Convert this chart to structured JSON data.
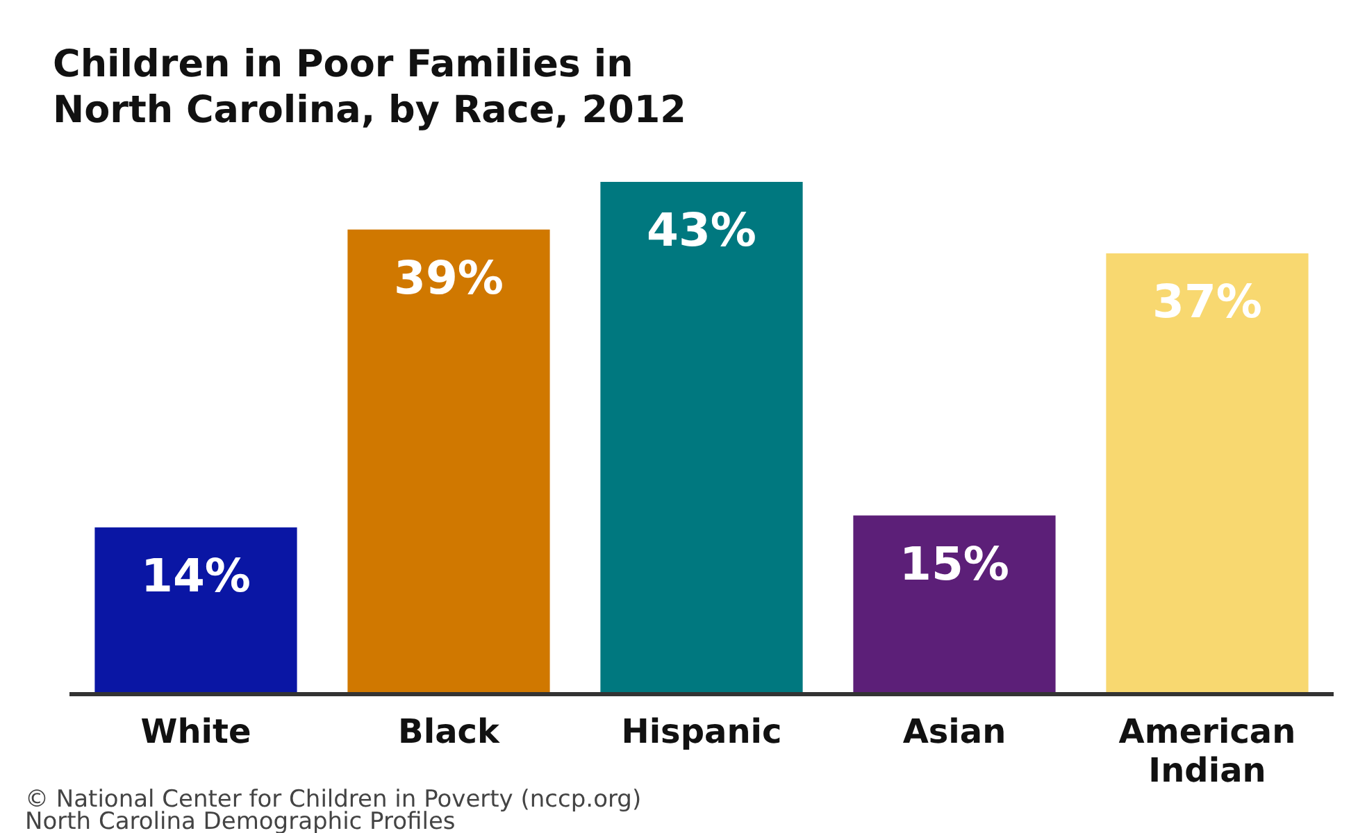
{
  "chart_data": {
    "type": "bar",
    "title": "Children in Poor Families in North Carolina, by Race, 2012",
    "categories": [
      "White",
      "Black",
      "Hispanic",
      "Asian",
      "American Indian"
    ],
    "values": [
      14,
      39,
      43,
      15,
      37
    ],
    "colors": [
      "#0a16a4",
      "#d07800",
      "#00787f",
      "#5c1f78",
      "#f8d870"
    ],
    "data_labels": true,
    "value_labels": [
      "14%",
      "39%",
      "43%",
      "15%",
      "37%"
    ],
    "annotations": [
      "© National Center for Children in Poverty (nccp.org)",
      "North Carolina Demographic Profiles"
    ]
  }
}
